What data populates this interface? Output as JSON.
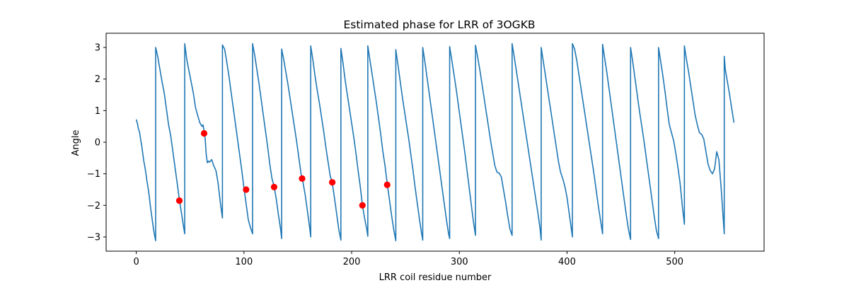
{
  "chart_data": {
    "type": "line",
    "title": "Estimated phase for LRR of 3OGKB",
    "xlabel": "LRR coil residue number",
    "ylabel": "Angle",
    "xlim": [
      -28,
      583
    ],
    "ylim": [
      -3.45,
      3.45
    ],
    "xticks": [
      0,
      100,
      200,
      300,
      400,
      500
    ],
    "yticks": [
      -3,
      -2,
      -1,
      0,
      1,
      2,
      3
    ],
    "grid": false,
    "series": [
      {
        "kind": "line",
        "color": "#1f77b4",
        "x": [
          0,
          1,
          2,
          3,
          4,
          5,
          6,
          7,
          8,
          9,
          10,
          11,
          12,
          13,
          14,
          15,
          16,
          17,
          18,
          18,
          20,
          22,
          24,
          26,
          28,
          30,
          32,
          34,
          36,
          38,
          40,
          42,
          44,
          45,
          45,
          47,
          49,
          51,
          53,
          55,
          57,
          59,
          61,
          62,
          63,
          64,
          65,
          66,
          67,
          68,
          70,
          72,
          74,
          76,
          78,
          80,
          80,
          82,
          84,
          86,
          88,
          90,
          92,
          94,
          96,
          98,
          100,
          102,
          104,
          106,
          108,
          108,
          110,
          112,
          114,
          116,
          118,
          120,
          122,
          124,
          126,
          128,
          130,
          132,
          134,
          135,
          135,
          137,
          139,
          141,
          143,
          145,
          147,
          149,
          151,
          153,
          155,
          157,
          159,
          161,
          162,
          162,
          164,
          166,
          168,
          170,
          172,
          174,
          176,
          178,
          180,
          182,
          184,
          186,
          188,
          190,
          190,
          192,
          194,
          196,
          198,
          200,
          202,
          204,
          206,
          208,
          210,
          212,
          214,
          215,
          215,
          217,
          219,
          221,
          223,
          225,
          227,
          229,
          231,
          233,
          235,
          237,
          239,
          241,
          241,
          243,
          245,
          247,
          249,
          251,
          253,
          255,
          257,
          259,
          261,
          263,
          265,
          266,
          266,
          268,
          270,
          272,
          274,
          276,
          278,
          280,
          282,
          284,
          286,
          288,
          290,
          291,
          291,
          293,
          295,
          297,
          299,
          301,
          303,
          305,
          307,
          309,
          311,
          313,
          315,
          315,
          317,
          319,
          321,
          323,
          325,
          327,
          329,
          331,
          333,
          335,
          337,
          339,
          341,
          343,
          345,
          347,
          349,
          349,
          351,
          353,
          355,
          357,
          359,
          361,
          363,
          365,
          367,
          369,
          371,
          373,
          375,
          376,
          376,
          378,
          380,
          382,
          384,
          386,
          388,
          390,
          392,
          394,
          396,
          398,
          400,
          402,
          404,
          405,
          405,
          407,
          409,
          411,
          413,
          415,
          417,
          419,
          421,
          423,
          425,
          427,
          429,
          431,
          433,
          433,
          435,
          437,
          439,
          441,
          443,
          445,
          447,
          449,
          451,
          453,
          455,
          457,
          459,
          459,
          461,
          463,
          465,
          467,
          469,
          471,
          473,
          475,
          477,
          479,
          481,
          483,
          485,
          485,
          487,
          489,
          491,
          493,
          495,
          497,
          499,
          501,
          503,
          505,
          507,
          509,
          509,
          511,
          513,
          515,
          517,
          519,
          521,
          523,
          525,
          527,
          529,
          530,
          531,
          533,
          535,
          537,
          539,
          541,
          543,
          545,
          546,
          546,
          547,
          548,
          549,
          551,
          553,
          555
        ],
        "y": [
          0.72,
          0.6,
          0.42,
          0.33,
          0.1,
          -0.1,
          -0.35,
          -0.6,
          -0.78,
          -1.0,
          -1.25,
          -1.45,
          -1.7,
          -2.0,
          -2.25,
          -2.5,
          -2.75,
          -2.95,
          -3.12,
          3.0,
          2.7,
          2.3,
          1.9,
          1.55,
          1.05,
          0.55,
          0.2,
          -0.3,
          -0.8,
          -1.3,
          -1.82,
          -2.25,
          -2.7,
          -2.9,
          3.12,
          2.6,
          2.25,
          1.9,
          1.55,
          1.1,
          0.85,
          0.62,
          0.5,
          0.55,
          0.35,
          0.1,
          -0.4,
          -0.65,
          -0.6,
          -0.63,
          -0.55,
          -0.75,
          -0.9,
          -1.3,
          -1.9,
          -2.4,
          3.08,
          2.95,
          2.55,
          2.1,
          1.6,
          1.1,
          0.6,
          0.1,
          -0.4,
          -0.9,
          -1.45,
          -1.95,
          -2.45,
          -2.7,
          -2.9,
          3.12,
          2.75,
          2.3,
          1.85,
          1.35,
          0.85,
          0.35,
          -0.15,
          -0.7,
          -1.15,
          -1.4,
          -1.8,
          -2.3,
          -2.75,
          -3.05,
          2.95,
          2.6,
          2.2,
          1.8,
          1.35,
          0.9,
          0.45,
          0.0,
          -0.5,
          -1.0,
          -1.3,
          -1.7,
          -2.2,
          -2.7,
          -3.0,
          3.05,
          2.6,
          2.1,
          1.65,
          1.25,
          0.8,
          0.35,
          -0.15,
          -0.6,
          -1.05,
          -1.3,
          -1.75,
          -2.25,
          -2.75,
          -3.1,
          2.97,
          2.5,
          1.95,
          1.5,
          1.05,
          0.6,
          0.15,
          -0.35,
          -0.9,
          -1.4,
          -2.0,
          -2.4,
          -2.75,
          -2.98,
          3.05,
          2.6,
          2.15,
          1.7,
          1.25,
          0.75,
          0.25,
          -0.3,
          -0.75,
          -1.3,
          -1.8,
          -2.3,
          -2.75,
          -3.12,
          2.93,
          2.45,
          1.95,
          1.45,
          1.0,
          0.55,
          0.1,
          -0.4,
          -0.9,
          -1.45,
          -1.95,
          -2.45,
          -2.9,
          -3.1,
          3.0,
          2.55,
          2.05,
          1.55,
          1.05,
          0.55,
          0.05,
          -0.45,
          -0.95,
          -1.45,
          -1.95,
          -2.45,
          -2.9,
          -3.05,
          3.03,
          2.6,
          2.15,
          1.7,
          1.2,
          0.7,
          0.2,
          -0.3,
          -0.85,
          -1.4,
          -1.95,
          -2.5,
          -2.95,
          3.07,
          2.7,
          2.3,
          1.85,
          1.4,
          0.95,
          0.5,
          0.05,
          -0.35,
          -0.75,
          -0.95,
          -0.98,
          -1.1,
          -1.5,
          -1.9,
          -2.35,
          -2.75,
          -2.95,
          3.12,
          2.7,
          2.25,
          1.8,
          1.35,
          0.9,
          0.45,
          0.0,
          -0.45,
          -0.9,
          -1.35,
          -1.8,
          -2.25,
          -2.75,
          -3.1,
          3.0,
          2.55,
          2.1,
          1.65,
          1.2,
          0.75,
          0.3,
          -0.15,
          -0.6,
          -0.95,
          -1.15,
          -1.4,
          -1.75,
          -2.25,
          -2.75,
          -3.0,
          3.12,
          2.95,
          2.6,
          2.15,
          1.7,
          1.25,
          0.8,
          0.35,
          -0.1,
          -0.55,
          -1.0,
          -1.5,
          -2.0,
          -2.45,
          -2.9,
          3.1,
          2.65,
          2.2,
          1.7,
          1.2,
          0.7,
          0.2,
          -0.3,
          -0.8,
          -1.3,
          -1.8,
          -2.3,
          -2.75,
          -3.08,
          3.0,
          2.55,
          2.05,
          1.55,
          1.05,
          0.6,
          0.15,
          -0.35,
          -0.85,
          -1.35,
          -1.85,
          -2.35,
          -2.8,
          -3.05,
          3.0,
          2.55,
          2.1,
          1.6,
          1.05,
          0.55,
          0.3,
          0.05,
          -0.35,
          -0.8,
          -1.3,
          -2.0,
          -2.6,
          3.05,
          2.6,
          2.2,
          1.75,
          1.3,
          0.85,
          0.55,
          0.3,
          0.25,
          0.1,
          -0.3,
          -0.5,
          -0.7,
          -0.9,
          -1.0,
          -0.85,
          -0.3,
          -0.55,
          -1.4,
          -2.4,
          -2.9,
          2.72,
          2.3,
          2.1,
          1.9,
          1.5,
          1.05,
          0.62
        ]
      },
      {
        "kind": "scatter",
        "color": "#ff0000",
        "x": [
          40,
          63,
          102,
          128,
          154,
          182,
          210,
          233
        ],
        "y": [
          -1.85,
          0.28,
          -1.5,
          -1.42,
          -1.15,
          -1.27,
          -2.0,
          -1.35
        ]
      }
    ]
  }
}
